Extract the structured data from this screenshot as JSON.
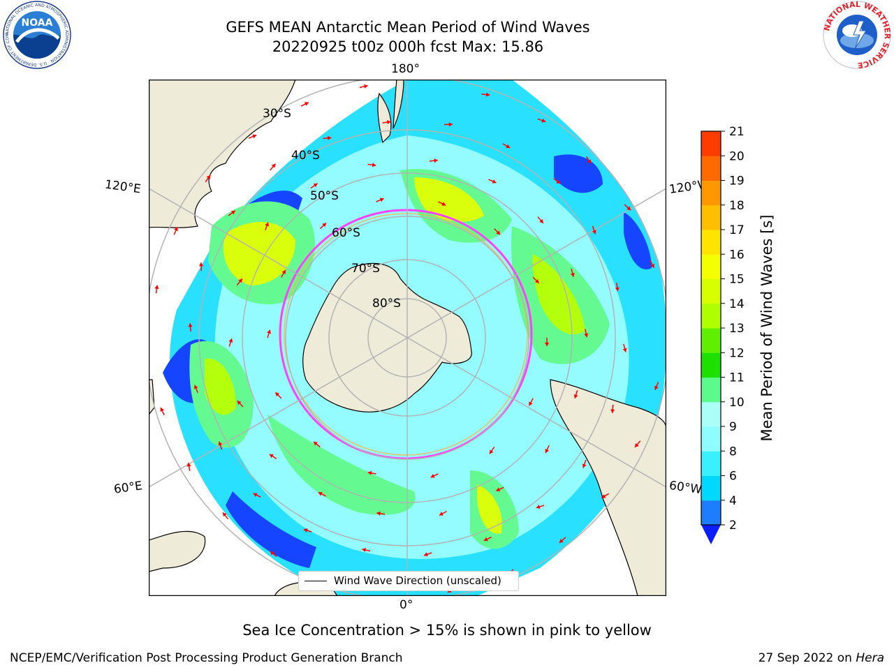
{
  "title": {
    "line1": "GEFS MEAN Antarctic Mean Period of Wind Waves",
    "line2": "20220925 t00z 000h fcst   Max: 15.86"
  },
  "logos": {
    "left": "NOAA",
    "left_ring": "NATIONAL OCEANIC AND ATMOSPHERIC ADMINISTRATION · U.S. DEPARTMENT OF COMMERCE",
    "right_ring": "NATIONAL WEATHER SERVICE"
  },
  "map": {
    "projection": "south-polar-stereographic",
    "lon_labels": {
      "top": "180°",
      "bottom": "0°",
      "left_upper": "120°E",
      "left_lower": "60°E",
      "right_upper": "120°W",
      "right_lower": "60°W"
    },
    "lat_labels": [
      "30°S",
      "40°S",
      "50°S",
      "60°S",
      "70°S",
      "80°S"
    ],
    "land_color": "#efebd9",
    "grid_color": "#b3b3b3",
    "arrow_color": "#ff0000",
    "ice_edge_colors": [
      "#ff40ff",
      "#ffb040"
    ]
  },
  "legend": {
    "label": "Wind Wave Direction (unscaled)"
  },
  "colorbar": {
    "label": "Mean Period of Wind Waves [s]",
    "ticks": [
      "2",
      "4",
      "6",
      "8",
      "9",
      "10",
      "11",
      "12",
      "13",
      "14",
      "15",
      "16",
      "17",
      "18",
      "19",
      "20",
      "21"
    ],
    "colors": [
      "#1e7cff",
      "#00d8ff",
      "#3af0ff",
      "#8ffcff",
      "#aafff8",
      "#5cfa8c",
      "#1ee000",
      "#5ef000",
      "#b0ff00",
      "#d8ff00",
      "#f4ff00",
      "#ffe400",
      "#ffbe00",
      "#ff9800",
      "#ff6a00",
      "#ff3c00"
    ],
    "under_color": "#0a1eff"
  },
  "caption": "Sea Ice Concentration > 15% is shown in pink to yellow",
  "footer": {
    "left": "NCEP/EMC/Verification Post Processing Product Generation Branch",
    "right_date": "27 Sep 2022 on ",
    "right_machine": "Hera"
  }
}
